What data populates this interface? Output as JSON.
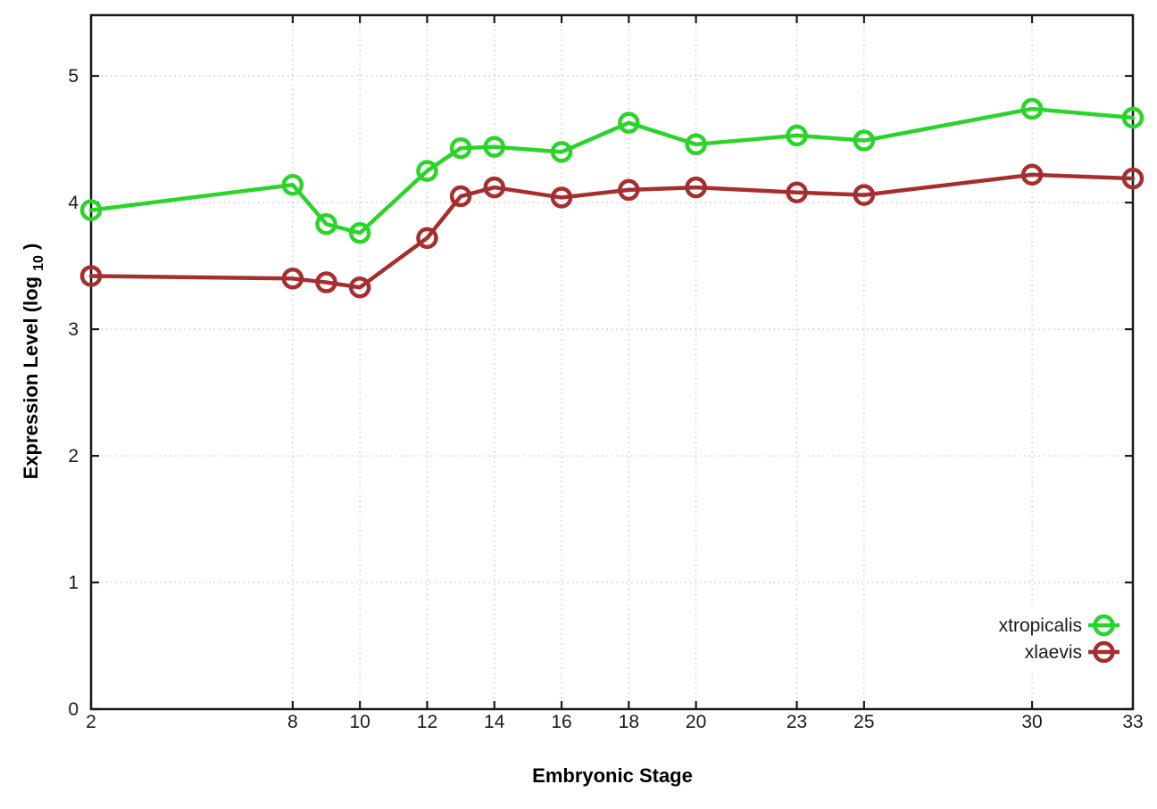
{
  "chart_data": {
    "type": "line",
    "title": "",
    "xlabel": "Embryonic Stage",
    "ylabel": {
      "prefix": "Expression Level (log",
      "sub": "10",
      "suffix": ")"
    },
    "x": [
      2,
      8,
      9,
      10,
      12,
      13,
      14,
      16,
      18,
      20,
      23,
      25,
      30,
      33
    ],
    "series": [
      {
        "name": "xtropicalis",
        "color": "#2bd32b",
        "values": [
          3.94,
          4.14,
          3.83,
          3.76,
          4.25,
          4.43,
          4.44,
          4.4,
          4.63,
          4.46,
          4.53,
          4.49,
          4.74,
          4.67
        ]
      },
      {
        "name": "xlaevis",
        "color": "#a52f2f",
        "values": [
          3.42,
          3.4,
          3.37,
          3.33,
          3.72,
          4.05,
          4.12,
          4.04,
          4.1,
          4.12,
          4.08,
          4.06,
          4.22,
          4.19
        ]
      }
    ],
    "xticks": [
      2,
      8,
      10,
      12,
      14,
      16,
      18,
      20,
      23,
      25,
      30,
      33
    ],
    "yticks": [
      0,
      1,
      2,
      3,
      4,
      5
    ],
    "xlim": [
      2,
      33
    ],
    "ylim": [
      0,
      5.48
    ],
    "grid": true,
    "legend_position": "bottom-right",
    "marker": "open-circle",
    "colors": {
      "axis": "#1a1a1a",
      "grid": "#c0c0c0",
      "background": "#ffffff"
    }
  }
}
